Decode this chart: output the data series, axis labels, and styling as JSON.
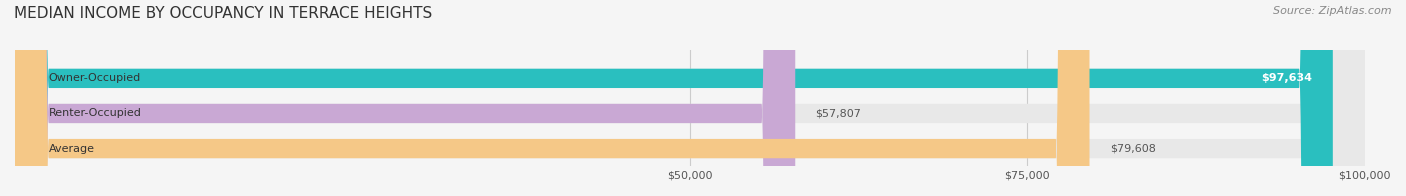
{
  "title": "MEDIAN INCOME BY OCCUPANCY IN TERRACE HEIGHTS",
  "source": "Source: ZipAtlas.com",
  "categories": [
    "Owner-Occupied",
    "Renter-Occupied",
    "Average"
  ],
  "values": [
    97634,
    57807,
    79608
  ],
  "bar_colors": [
    "#2abfbf",
    "#c9a8d4",
    "#f5c887"
  ],
  "bar_edge_colors": [
    "#2abfbf",
    "#c9a8d4",
    "#f5c887"
  ],
  "value_labels": [
    "$97,634",
    "$57,807",
    "$79,608"
  ],
  "xmin": 0,
  "xmax": 100000,
  "xticks": [
    50000,
    75000,
    100000
  ],
  "xtick_labels": [
    "$50,000",
    "$75,000",
    "$100,000"
  ],
  "bg_color": "#f5f5f5",
  "bar_bg_color": "#e8e8e8",
  "title_fontsize": 11,
  "source_fontsize": 8,
  "label_fontsize": 8,
  "value_fontsize": 8,
  "tick_fontsize": 8
}
